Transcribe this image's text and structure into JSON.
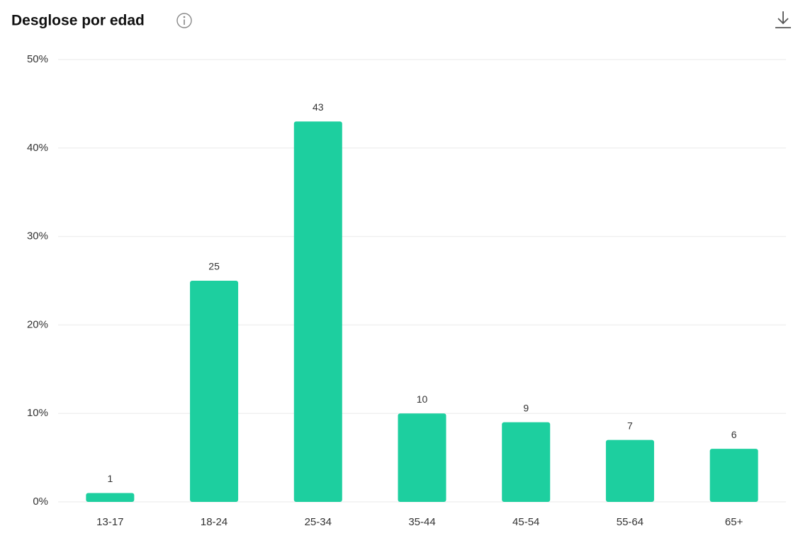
{
  "chart_data": {
    "type": "bar",
    "title": "Desglose por edad",
    "categories": [
      "13-17",
      "18-24",
      "25-34",
      "35-44",
      "45-54",
      "55-64",
      "65+"
    ],
    "values": [
      1,
      25,
      43,
      10,
      9,
      7,
      6
    ],
    "color": "#1dcf9f",
    "ylim": [
      0,
      50
    ],
    "yticks": [
      {
        "value": 0,
        "label": "0%"
      },
      {
        "value": 10,
        "label": "10%"
      },
      {
        "value": 20,
        "label": "20%"
      },
      {
        "value": 30,
        "label": "30%"
      },
      {
        "value": 40,
        "label": "40%"
      },
      {
        "value": 50,
        "label": "50%"
      }
    ],
    "grid": true
  }
}
